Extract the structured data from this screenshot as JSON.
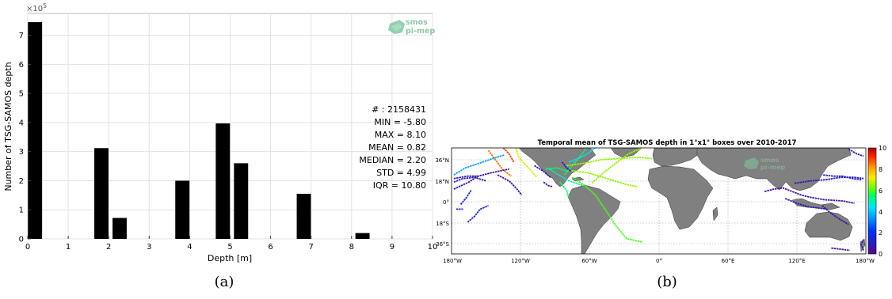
{
  "panel_a": {
    "caption": "(a)",
    "logo_line1": "smos",
    "logo_line2": "pi-mep",
    "exponent_label": "×10",
    "exponent_power": "5",
    "stats": [
      "# : 2158431",
      "MIN = -5.80",
      "MAX =  8.10",
      "MEAN = 0.82",
      "MEDIAN = 2.20",
      "STD = 4.99",
      "IQR = 10.80"
    ]
  },
  "panel_b": {
    "caption": "(b)",
    "title": "Temporal mean of TSG-SAMOS depth in 1°x1° boxes over 2010-2017",
    "logo_line1": "smos",
    "logo_line2": "pi-mep",
    "lat_labels": [
      "36°N",
      "18°N",
      "0°",
      "18°S",
      "36°S"
    ],
    "lon_labels": [
      "180°W",
      "120°W",
      "60°W",
      "0°",
      "60°E",
      "120°E",
      "180°W"
    ],
    "colorbar_ticks": [
      "10",
      "8",
      "6",
      "4",
      "2",
      "0"
    ],
    "colors": {
      "land": "#808080",
      "ocean": "#ffffff"
    }
  },
  "chart_data": [
    {
      "type": "bar",
      "title": "",
      "xlabel": "Depth [m]",
      "ylabel": "Number of TSG-SAMOS depth",
      "y_scale_factor": "1e5",
      "xlim": [
        0,
        10
      ],
      "ylim": [
        0,
        7.75
      ],
      "xticks": [
        "0",
        "1",
        "2",
        "3",
        "4",
        "5",
        "6",
        "7",
        "8",
        "9",
        "10"
      ],
      "yticks": [
        "0",
        "1",
        "2",
        "3",
        "4",
        "5",
        "6",
        "7"
      ],
      "bar_width": 0.35,
      "grid": true,
      "bar_color": "#000000",
      "bars": [
        {
          "x": 0.18,
          "value": 7.45
        },
        {
          "x": 1.82,
          "value": 3.12
        },
        {
          "x": 2.27,
          "value": 0.72
        },
        {
          "x": 3.82,
          "value": 2.0
        },
        {
          "x": 4.82,
          "value": 3.97
        },
        {
          "x": 5.27,
          "value": 2.6
        },
        {
          "x": 6.82,
          "value": 1.55
        },
        {
          "x": 8.27,
          "value": 0.2
        }
      ]
    },
    {
      "type": "heatmap",
      "title": "Temporal mean of TSG-SAMOS depth in 1°x1° boxes over 2010-2017",
      "colorbar_range": [
        0,
        10
      ],
      "colormap": "jet",
      "lon_range": [
        -180,
        180
      ],
      "lat_range": [
        -45,
        45
      ],
      "tracks": [
        {
          "value": 8.5,
          "points": [
            [
              -148,
              43
            ],
            [
              -142,
              35
            ],
            [
              -135,
              26
            ],
            [
              -128,
              21
            ]
          ]
        },
        {
          "value": 9.0,
          "points": [
            [
              -135,
              45
            ],
            [
              -130,
              40
            ],
            [
              -126,
              33
            ]
          ]
        },
        {
          "value": 7.0,
          "points": [
            [
              -124,
              45
            ],
            [
              -122,
              38
            ],
            [
              -118,
              33
            ],
            [
              -112,
              27
            ],
            [
              -106,
              20
            ]
          ]
        },
        {
          "value": 3.5,
          "points": [
            [
              -178,
              22
            ],
            [
              -168,
              28
            ],
            [
              -156,
              32
            ],
            [
              -144,
              36
            ],
            [
              -134,
              39
            ]
          ]
        },
        {
          "value": 0.5,
          "points": [
            [
              -178,
              19
            ],
            [
              -166,
              21
            ],
            [
              -157,
              21
            ],
            [
              -145,
              24
            ],
            [
              -130,
              27
            ]
          ]
        },
        {
          "value": 1.5,
          "points": [
            [
              -178,
              16
            ],
            [
              -170,
              19
            ],
            [
              -160,
              20
            ],
            [
              -150,
              17
            ]
          ]
        },
        {
          "value": 0.5,
          "points": [
            [
              -178,
              10
            ],
            [
              -165,
              16
            ],
            [
              -157,
              21
            ]
          ]
        },
        {
          "value": 1.5,
          "points": [
            [
              -172,
              -3
            ],
            [
              -167,
              3
            ],
            [
              -163,
              9
            ]
          ]
        },
        {
          "value": 1.5,
          "points": [
            [
              -176,
              -7
            ],
            [
              -170,
              -7
            ]
          ]
        },
        {
          "value": 1.5,
          "points": [
            [
              -166,
              -18
            ],
            [
              -160,
              -13
            ],
            [
              -155,
              -7
            ],
            [
              -148,
              -4
            ]
          ]
        },
        {
          "value": 0.5,
          "points": [
            [
              -140,
              22
            ],
            [
              -130,
              17
            ],
            [
              -124,
              11
            ],
            [
              -119,
              5
            ]
          ]
        },
        {
          "value": 1.0,
          "points": [
            [
              -108,
              30
            ],
            [
              -100,
              25
            ],
            [
              -94,
              20
            ]
          ]
        },
        {
          "value": 5.5,
          "points": [
            [
              -98,
              27
            ],
            [
              -88,
              28
            ],
            [
              -82,
              26
            ],
            [
              -78,
              25
            ]
          ]
        },
        {
          "value": 5.0,
          "points": [
            [
              -96,
              28
            ],
            [
              -90,
              24
            ],
            [
              -85,
              21
            ],
            [
              -80,
              18
            ],
            [
              -72,
              15
            ],
            [
              -65,
              13
            ]
          ]
        },
        {
          "value": 5.5,
          "points": [
            [
              -82,
              22
            ],
            [
              -75,
              30
            ],
            [
              -68,
              38
            ],
            [
              -63,
              45
            ]
          ]
        },
        {
          "value": 4.5,
          "points": [
            [
              -78,
              33
            ],
            [
              -70,
              36
            ],
            [
              -62,
              40
            ],
            [
              -55,
              45
            ]
          ]
        },
        {
          "value": 6.5,
          "points": [
            [
              -80,
              30
            ],
            [
              -65,
              32
            ],
            [
              -50,
              35
            ],
            [
              -35,
              36
            ],
            [
              -18,
              37
            ],
            [
              -6,
              36
            ]
          ]
        },
        {
          "value": 6.5,
          "points": [
            [
              -78,
              26
            ],
            [
              -62,
              24
            ],
            [
              -45,
              19
            ],
            [
              -28,
              14
            ],
            [
              -18,
              12
            ]
          ]
        },
        {
          "value": 6.0,
          "points": [
            [
              -75,
              20
            ],
            [
              -64,
              13
            ],
            [
              -55,
              5
            ],
            [
              -46,
              -8
            ],
            [
              -38,
              -20
            ],
            [
              -28,
              -32
            ],
            [
              -14,
              -35
            ]
          ]
        },
        {
          "value": 6.5,
          "points": [
            [
              -58,
              15
            ],
            [
              -48,
              24
            ],
            [
              -36,
              33
            ],
            [
              -26,
              40
            ],
            [
              -15,
              45
            ]
          ]
        },
        {
          "value": 5.5,
          "points": [
            [
              -86,
              16
            ],
            [
              -80,
              9
            ],
            [
              -78,
              2
            ]
          ]
        },
        {
          "value": 1.0,
          "points": [
            [
              -84,
              33
            ],
            [
              -80,
              28
            ],
            [
              -76,
              25
            ]
          ]
        },
        {
          "value": 1.0,
          "points": [
            [
              -100,
              16
            ],
            [
              -96,
              13
            ],
            [
              -92,
              12
            ]
          ]
        },
        {
          "value": 1.0,
          "points": [
            [
              165,
              44
            ],
            [
              172,
              40
            ],
            [
              178,
              38
            ]
          ]
        },
        {
          "value": 1.0,
          "points": [
            [
              118,
              15
            ],
            [
              132,
              17
            ],
            [
              145,
              18
            ],
            [
              158,
              20
            ],
            [
              170,
              20
            ],
            [
              178,
              19
            ]
          ]
        },
        {
          "value": 1.5,
          "points": [
            [
              143,
              22
            ],
            [
              152,
              21
            ],
            [
              160,
              21
            ],
            [
              168,
              19
            ],
            [
              176,
              18
            ]
          ]
        },
        {
          "value": 0.5,
          "points": [
            [
              92,
              8
            ],
            [
              100,
              10
            ],
            [
              108,
              11
            ],
            [
              116,
              8
            ],
            [
              124,
              5
            ],
            [
              132,
              3
            ],
            [
              144,
              1
            ],
            [
              160,
              0
            ],
            [
              170,
              -2
            ]
          ]
        },
        {
          "value": 1.0,
          "points": [
            [
              110,
              2
            ],
            [
              120,
              -2
            ],
            [
              130,
              -5
            ],
            [
              138,
              -6
            ],
            [
              146,
              -7
            ]
          ]
        },
        {
          "value": 0.5,
          "points": [
            [
              142,
              -4
            ],
            [
              148,
              -9
            ],
            [
              152,
              -12
            ],
            [
              158,
              -16
            ],
            [
              165,
              -20
            ]
          ]
        },
        {
          "value": 0.5,
          "points": [
            [
              150,
              -40
            ],
            [
              158,
              -41
            ],
            [
              166,
              -42
            ]
          ]
        },
        {
          "value": 1.0,
          "points": [
            [
              178,
              -42
            ],
            [
              176,
              -37
            ],
            [
              178,
              -33
            ]
          ]
        }
      ]
    }
  ]
}
